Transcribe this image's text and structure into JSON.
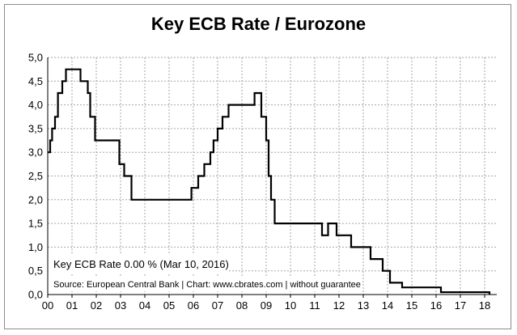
{
  "chart_data": {
    "type": "line",
    "title": "Key ECB Rate / Eurozone",
    "xlabel": "",
    "ylabel": "",
    "xlim": [
      0,
      18.5
    ],
    "ylim": [
      0,
      5
    ],
    "grid": true,
    "x_ticks": [
      "00",
      "01",
      "02",
      "03",
      "04",
      "05",
      "06",
      "07",
      "08",
      "09",
      "10",
      "11",
      "12",
      "13",
      "14",
      "15",
      "16",
      "17",
      "18"
    ],
    "y_ticks": [
      "0,0",
      "0,5",
      "1,0",
      "1,5",
      "2,0",
      "2,5",
      "3,0",
      "3,5",
      "4,0",
      "4,5",
      "5,0"
    ],
    "series": [
      {
        "name": "",
        "x": [
          0.0,
          0.1,
          0.18,
          0.3,
          0.42,
          0.6,
          0.75,
          0.82,
          1.35,
          1.65,
          1.75,
          1.95,
          2.95,
          3.15,
          3.45,
          5.92,
          6.2,
          6.45,
          6.7,
          6.83,
          7.0,
          7.2,
          7.45,
          8.52,
          8.8,
          9.0,
          9.1,
          9.2,
          9.35,
          11.3,
          11.55,
          11.9,
          12.5,
          13.3,
          13.8,
          14.1,
          14.6,
          16.2,
          18.2
        ],
        "values": [
          3.0,
          3.25,
          3.5,
          3.75,
          4.25,
          4.5,
          4.75,
          4.75,
          4.5,
          4.25,
          3.75,
          3.25,
          2.75,
          2.5,
          2.0,
          2.25,
          2.5,
          2.75,
          3.0,
          3.25,
          3.5,
          3.75,
          4.0,
          4.25,
          3.75,
          3.25,
          2.5,
          2.0,
          1.5,
          1.25,
          1.5,
          1.25,
          1.0,
          0.75,
          0.5,
          0.25,
          0.15,
          0.05,
          0.0
        ]
      }
    ],
    "annotations": [
      "Key ECB Rate 0.00 % (Mar 10, 2016)",
      "Source: European Central Bank | Chart: www.cbrates.com | without guarantee"
    ]
  }
}
